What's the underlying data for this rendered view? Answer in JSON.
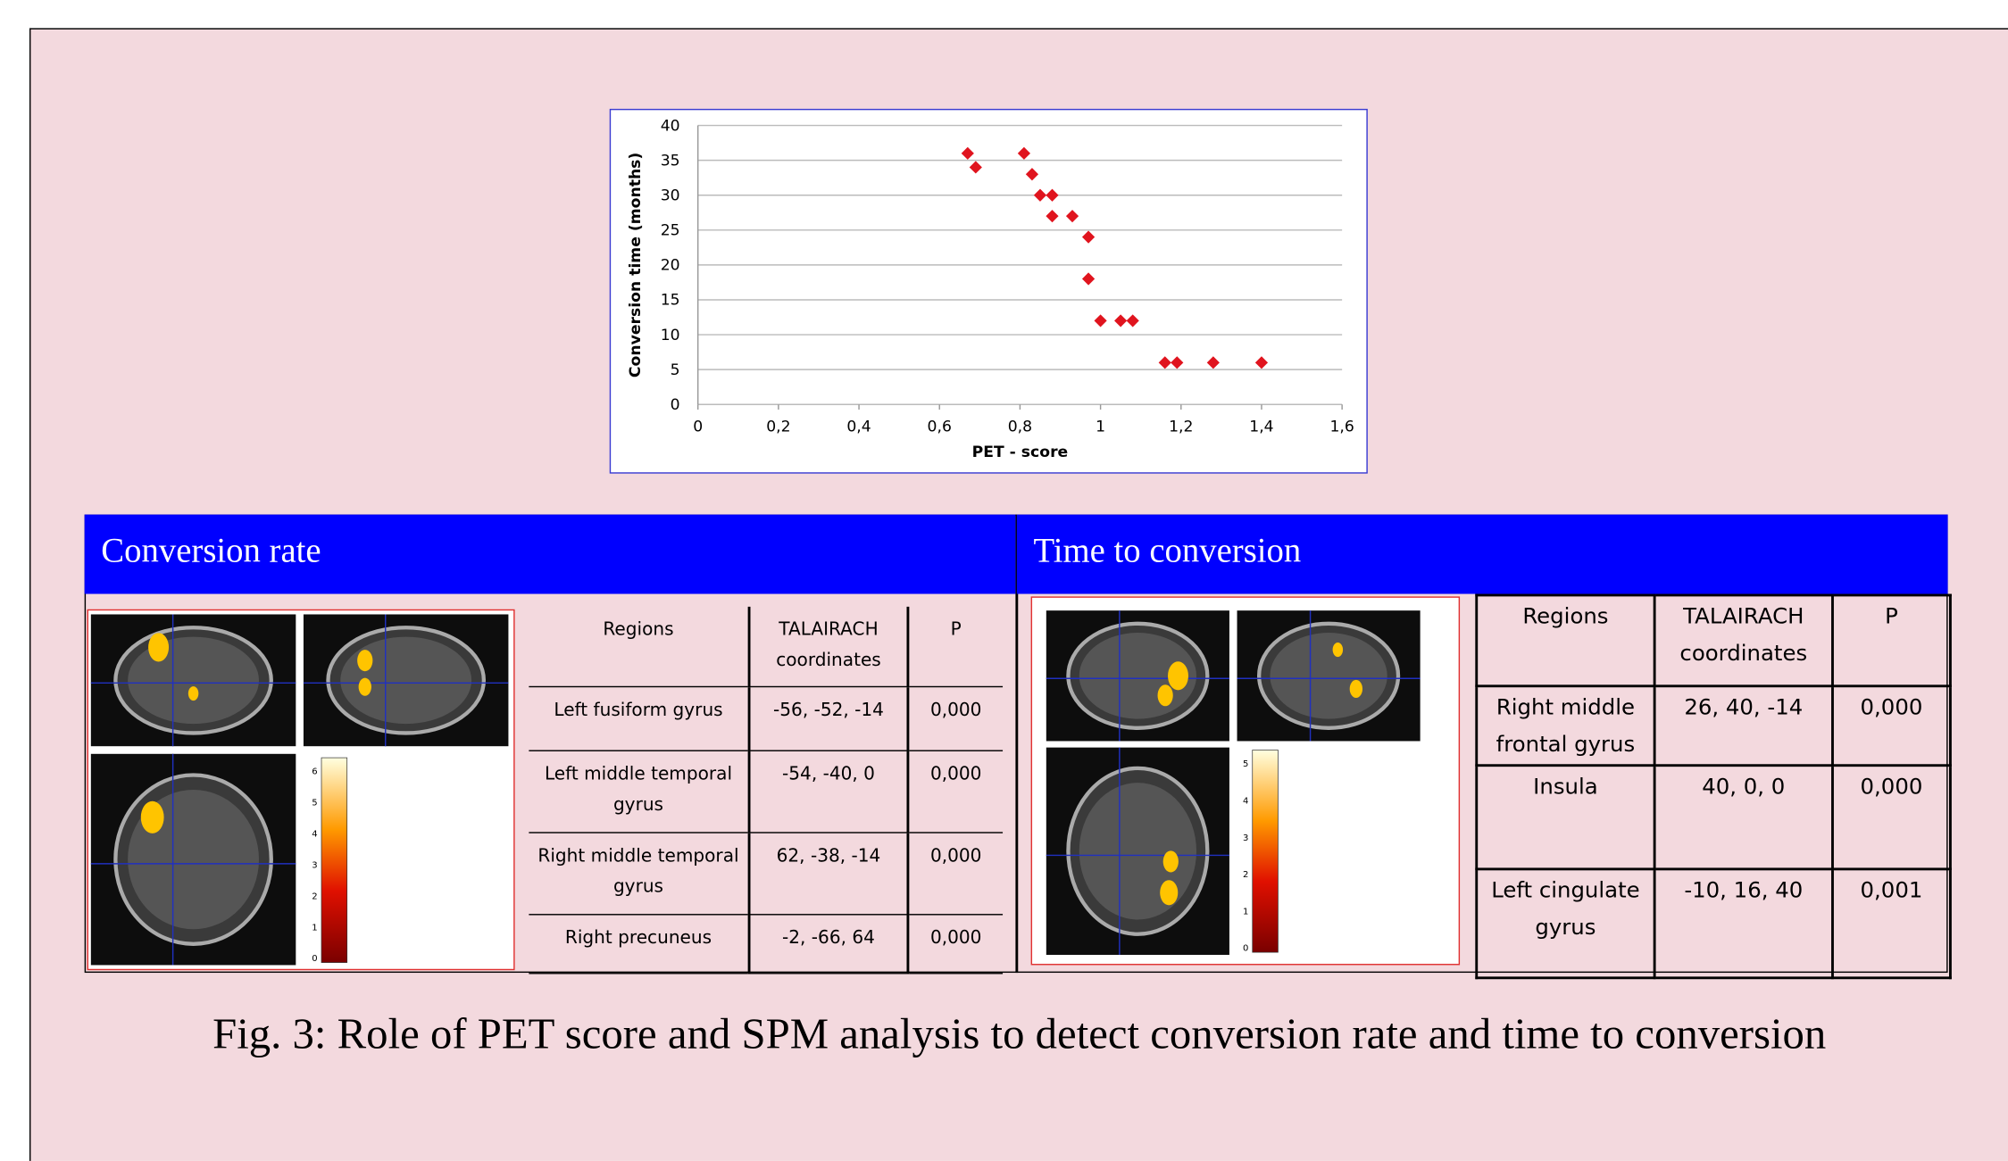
{
  "chart_data": {
    "type": "scatter",
    "x_label": "PET - score",
    "y_label": "Conversion time (months)",
    "x": [
      0.67,
      0.69,
      0.81,
      0.83,
      0.85,
      0.88,
      0.88,
      0.93,
      0.97,
      0.97,
      1.0,
      1.05,
      1.08,
      1.16,
      1.19,
      1.28,
      1.4
    ],
    "values": [
      36,
      34,
      36,
      33,
      30,
      30,
      27,
      27,
      24,
      18,
      12,
      12,
      12,
      6,
      6,
      6,
      6
    ],
    "color": "#e0141e",
    "xlim": [
      0,
      1.6
    ],
    "xticks": [
      0,
      {
        "value": 0.2,
        "label": "0,2"
      },
      {
        "value": 0.4,
        "label": "0,4"
      },
      {
        "value": 0.6,
        "label": "0,6"
      },
      {
        "value": 0.8,
        "label": "0,8"
      },
      1,
      {
        "value": 1.2,
        "label": "1,2"
      },
      {
        "value": 1.4,
        "label": "1,4"
      },
      {
        "value": 1.6,
        "label": "1,6"
      }
    ],
    "ylim": [
      0,
      40
    ],
    "yticks": [
      0,
      5,
      10,
      15,
      20,
      25,
      30,
      35,
      40
    ],
    "grid": true
  },
  "panels": [
    {
      "title": "Conversion rate",
      "colorbar_ticks": [
        0,
        1,
        2,
        3,
        4,
        5,
        6
      ],
      "table": {
        "header": [
          "Regions",
          "TALAIRACH coordinates",
          "P"
        ],
        "rows": [
          [
            "Left fusiform gyrus",
            "-56, -52, -14",
            "0,000"
          ],
          [
            "Left middle temporal gyrus",
            "-54, -40, 0",
            "0,000"
          ],
          [
            "Right middle temporal gyrus",
            "62, -38, -14",
            "0,000"
          ],
          [
            "Right precuneus",
            "-2, -66, 64",
            "0,000"
          ]
        ]
      }
    },
    {
      "title": "Time to conversion",
      "colorbar_ticks": [
        0,
        1,
        2,
        3,
        4,
        5
      ],
      "table": {
        "header": [
          "Regions",
          "TALAIRACH coordinates",
          "P"
        ],
        "rows": [
          [
            "Right middle frontal gyrus",
            "26, 40, -14",
            "0,000"
          ],
          [
            "Insula",
            "40, 0, 0",
            "0,000"
          ],
          [
            "Left cingulate gyrus",
            "-10, 16, 40",
            "0,001"
          ]
        ]
      }
    }
  ],
  "caption": "Fig. 3: Role of PET score and SPM analysis to detect conversion rate and time to conversion"
}
